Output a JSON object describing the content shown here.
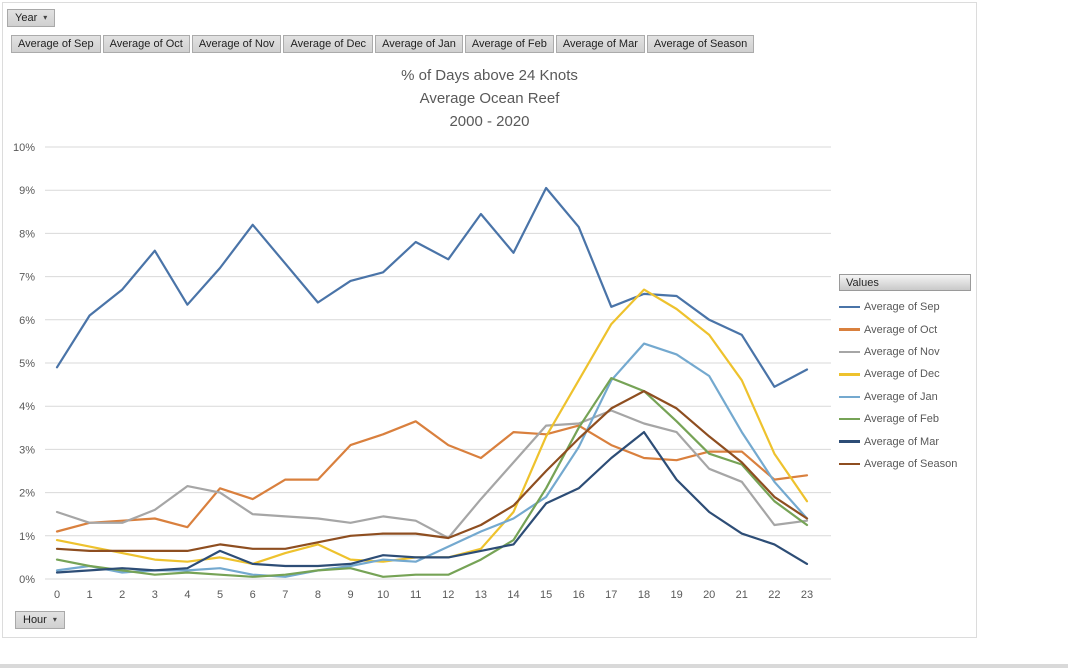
{
  "pivot": {
    "year_button": "Year",
    "hour_button": "Hour",
    "legend_header": "Values",
    "value_buttons": [
      "Average of Sep",
      "Average of Oct",
      "Average of Nov",
      "Average of Dec",
      "Average of Jan",
      "Average of Feb",
      "Average of Mar",
      "Average of Season"
    ]
  },
  "colors": {
    "gridline": "#d9d9d9",
    "axis_text": "#595959",
    "title_text": "#595959",
    "button_face": "#d6d6d6"
  },
  "chart_data": {
    "type": "line",
    "title": "% of Days above 24 Knots Average Ocean Reef 2000 - 2020",
    "title_lines": [
      "% of Days above 24 Knots",
      "Average Ocean Reef",
      "2000 - 2020"
    ],
    "xlabel": "",
    "ylabel": "",
    "ylim": [
      0,
      10
    ],
    "grid": true,
    "legend_position": "right",
    "x_ticks": [
      "0",
      "1",
      "2",
      "3",
      "4",
      "5",
      "6",
      "7",
      "8",
      "9",
      "10",
      "11",
      "12",
      "13",
      "14",
      "15",
      "16",
      "17",
      "18",
      "19",
      "20",
      "21",
      "22",
      "23"
    ],
    "y_ticks": [
      "0%",
      "1%",
      "2%",
      "3%",
      "4%",
      "5%",
      "6%",
      "7%",
      "8%",
      "9%",
      "10%"
    ],
    "series": [
      {
        "name": "Average of Sep",
        "color": "#4a74a8",
        "values": [
          4.9,
          6.1,
          6.7,
          7.6,
          6.35,
          7.2,
          8.2,
          7.3,
          6.4,
          6.9,
          7.1,
          7.8,
          7.4,
          8.45,
          7.55,
          9.05,
          8.15,
          6.3,
          6.6,
          6.55,
          6.0,
          5.65,
          4.45,
          4.85
        ]
      },
      {
        "name": "Average of Oct",
        "color": "#d9803e",
        "values": [
          1.1,
          1.3,
          1.35,
          1.4,
          1.2,
          2.1,
          1.85,
          2.3,
          2.3,
          3.1,
          3.35,
          3.65,
          3.1,
          2.8,
          3.4,
          3.35,
          3.55,
          3.1,
          2.8,
          2.75,
          2.95,
          2.95,
          2.3,
          2.4
        ]
      },
      {
        "name": "Average of Nov",
        "color": "#a6a6a6",
        "values": [
          1.55,
          1.3,
          1.3,
          1.6,
          2.15,
          2.0,
          1.5,
          1.45,
          1.4,
          1.3,
          1.45,
          1.35,
          0.95,
          1.85,
          2.7,
          3.55,
          3.6,
          3.9,
          3.6,
          3.4,
          2.55,
          2.25,
          1.25,
          1.35
        ]
      },
      {
        "name": "Average of Dec",
        "color": "#eec22d",
        "values": [
          0.9,
          0.75,
          0.6,
          0.45,
          0.4,
          0.5,
          0.35,
          0.6,
          0.8,
          0.45,
          0.4,
          0.5,
          0.5,
          0.7,
          1.55,
          3.3,
          4.6,
          5.9,
          6.7,
          6.25,
          5.65,
          4.6,
          2.9,
          1.8
        ]
      },
      {
        "name": "Average of Jan",
        "color": "#74a9cf",
        "values": [
          0.2,
          0.3,
          0.15,
          0.2,
          0.2,
          0.25,
          0.1,
          0.05,
          0.2,
          0.3,
          0.45,
          0.4,
          0.75,
          1.1,
          1.4,
          1.9,
          3.05,
          4.6,
          5.45,
          5.2,
          4.7,
          3.4,
          2.25,
          1.4
        ]
      },
      {
        "name": "Average of Feb",
        "color": "#76a356",
        "values": [
          0.45,
          0.3,
          0.2,
          0.1,
          0.15,
          0.1,
          0.05,
          0.1,
          0.2,
          0.25,
          0.05,
          0.1,
          0.1,
          0.45,
          0.9,
          2.1,
          3.5,
          4.65,
          4.35,
          3.65,
          2.9,
          2.65,
          1.8,
          1.25
        ]
      },
      {
        "name": "Average of Mar",
        "color": "#2d4d76",
        "values": [
          0.15,
          0.2,
          0.25,
          0.2,
          0.25,
          0.65,
          0.35,
          0.3,
          0.3,
          0.35,
          0.55,
          0.5,
          0.5,
          0.65,
          0.8,
          1.75,
          2.1,
          2.8,
          3.4,
          2.3,
          1.55,
          1.05,
          0.8,
          0.35
        ]
      },
      {
        "name": "Average of Season",
        "color": "#8e4e20",
        "values": [
          0.7,
          0.65,
          0.65,
          0.65,
          0.65,
          0.8,
          0.7,
          0.7,
          0.85,
          1.0,
          1.05,
          1.05,
          0.95,
          1.25,
          1.7,
          2.5,
          3.25,
          3.95,
          4.35,
          3.95,
          3.3,
          2.7,
          1.9,
          1.4
        ]
      }
    ]
  }
}
